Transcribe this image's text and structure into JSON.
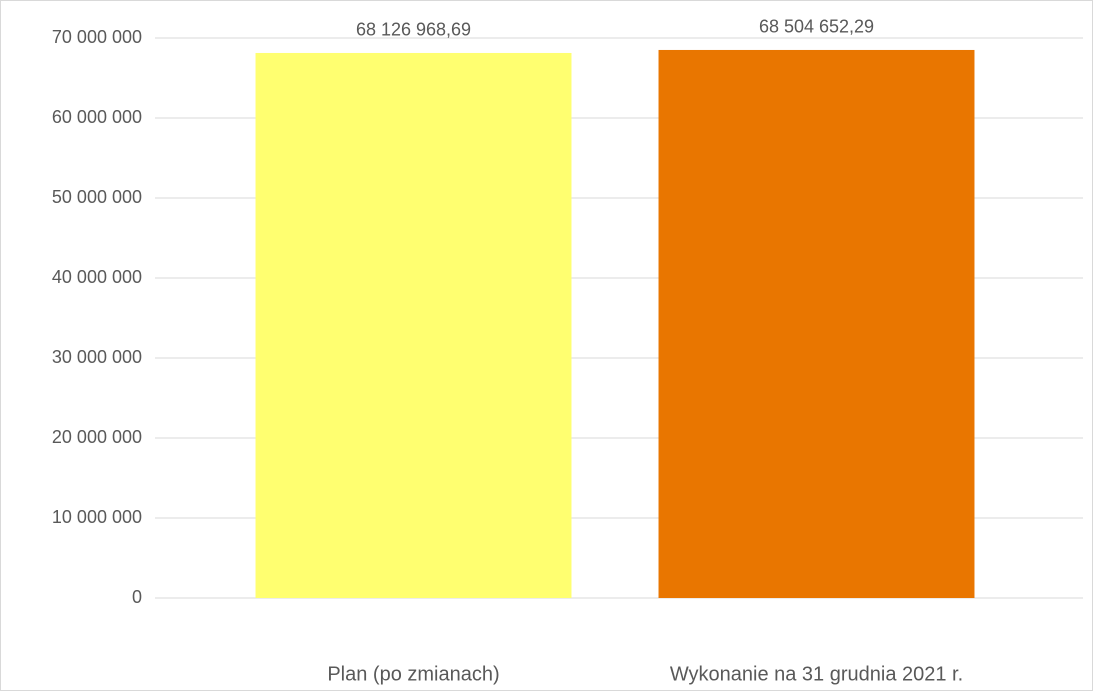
{
  "chart_data": {
    "type": "bar",
    "categories": [
      "Plan (po zmianach)",
      "Wykonanie na 31 grudnia 2021 r."
    ],
    "values": [
      68126968.69,
      68504652.29
    ],
    "value_labels": [
      "68 126 968,69",
      "68 504 652,29"
    ],
    "colors": [
      "#ffff70",
      "#e97600"
    ],
    "ylim": [
      0,
      70000000
    ],
    "yticks": [
      0,
      {
        "value": 10000000,
        "label": "10 000 000"
      },
      {
        "value": 20000000,
        "label": "20 000 000"
      },
      {
        "value": 30000000,
        "label": "30 000 000"
      },
      {
        "value": 40000000,
        "label": "40 000 000"
      },
      {
        "value": 50000000,
        "label": "50 000 000"
      },
      {
        "value": 60000000,
        "label": "60 000 000"
      },
      {
        "value": 70000000,
        "label": "70 000 000"
      }
    ],
    "grid": true
  }
}
